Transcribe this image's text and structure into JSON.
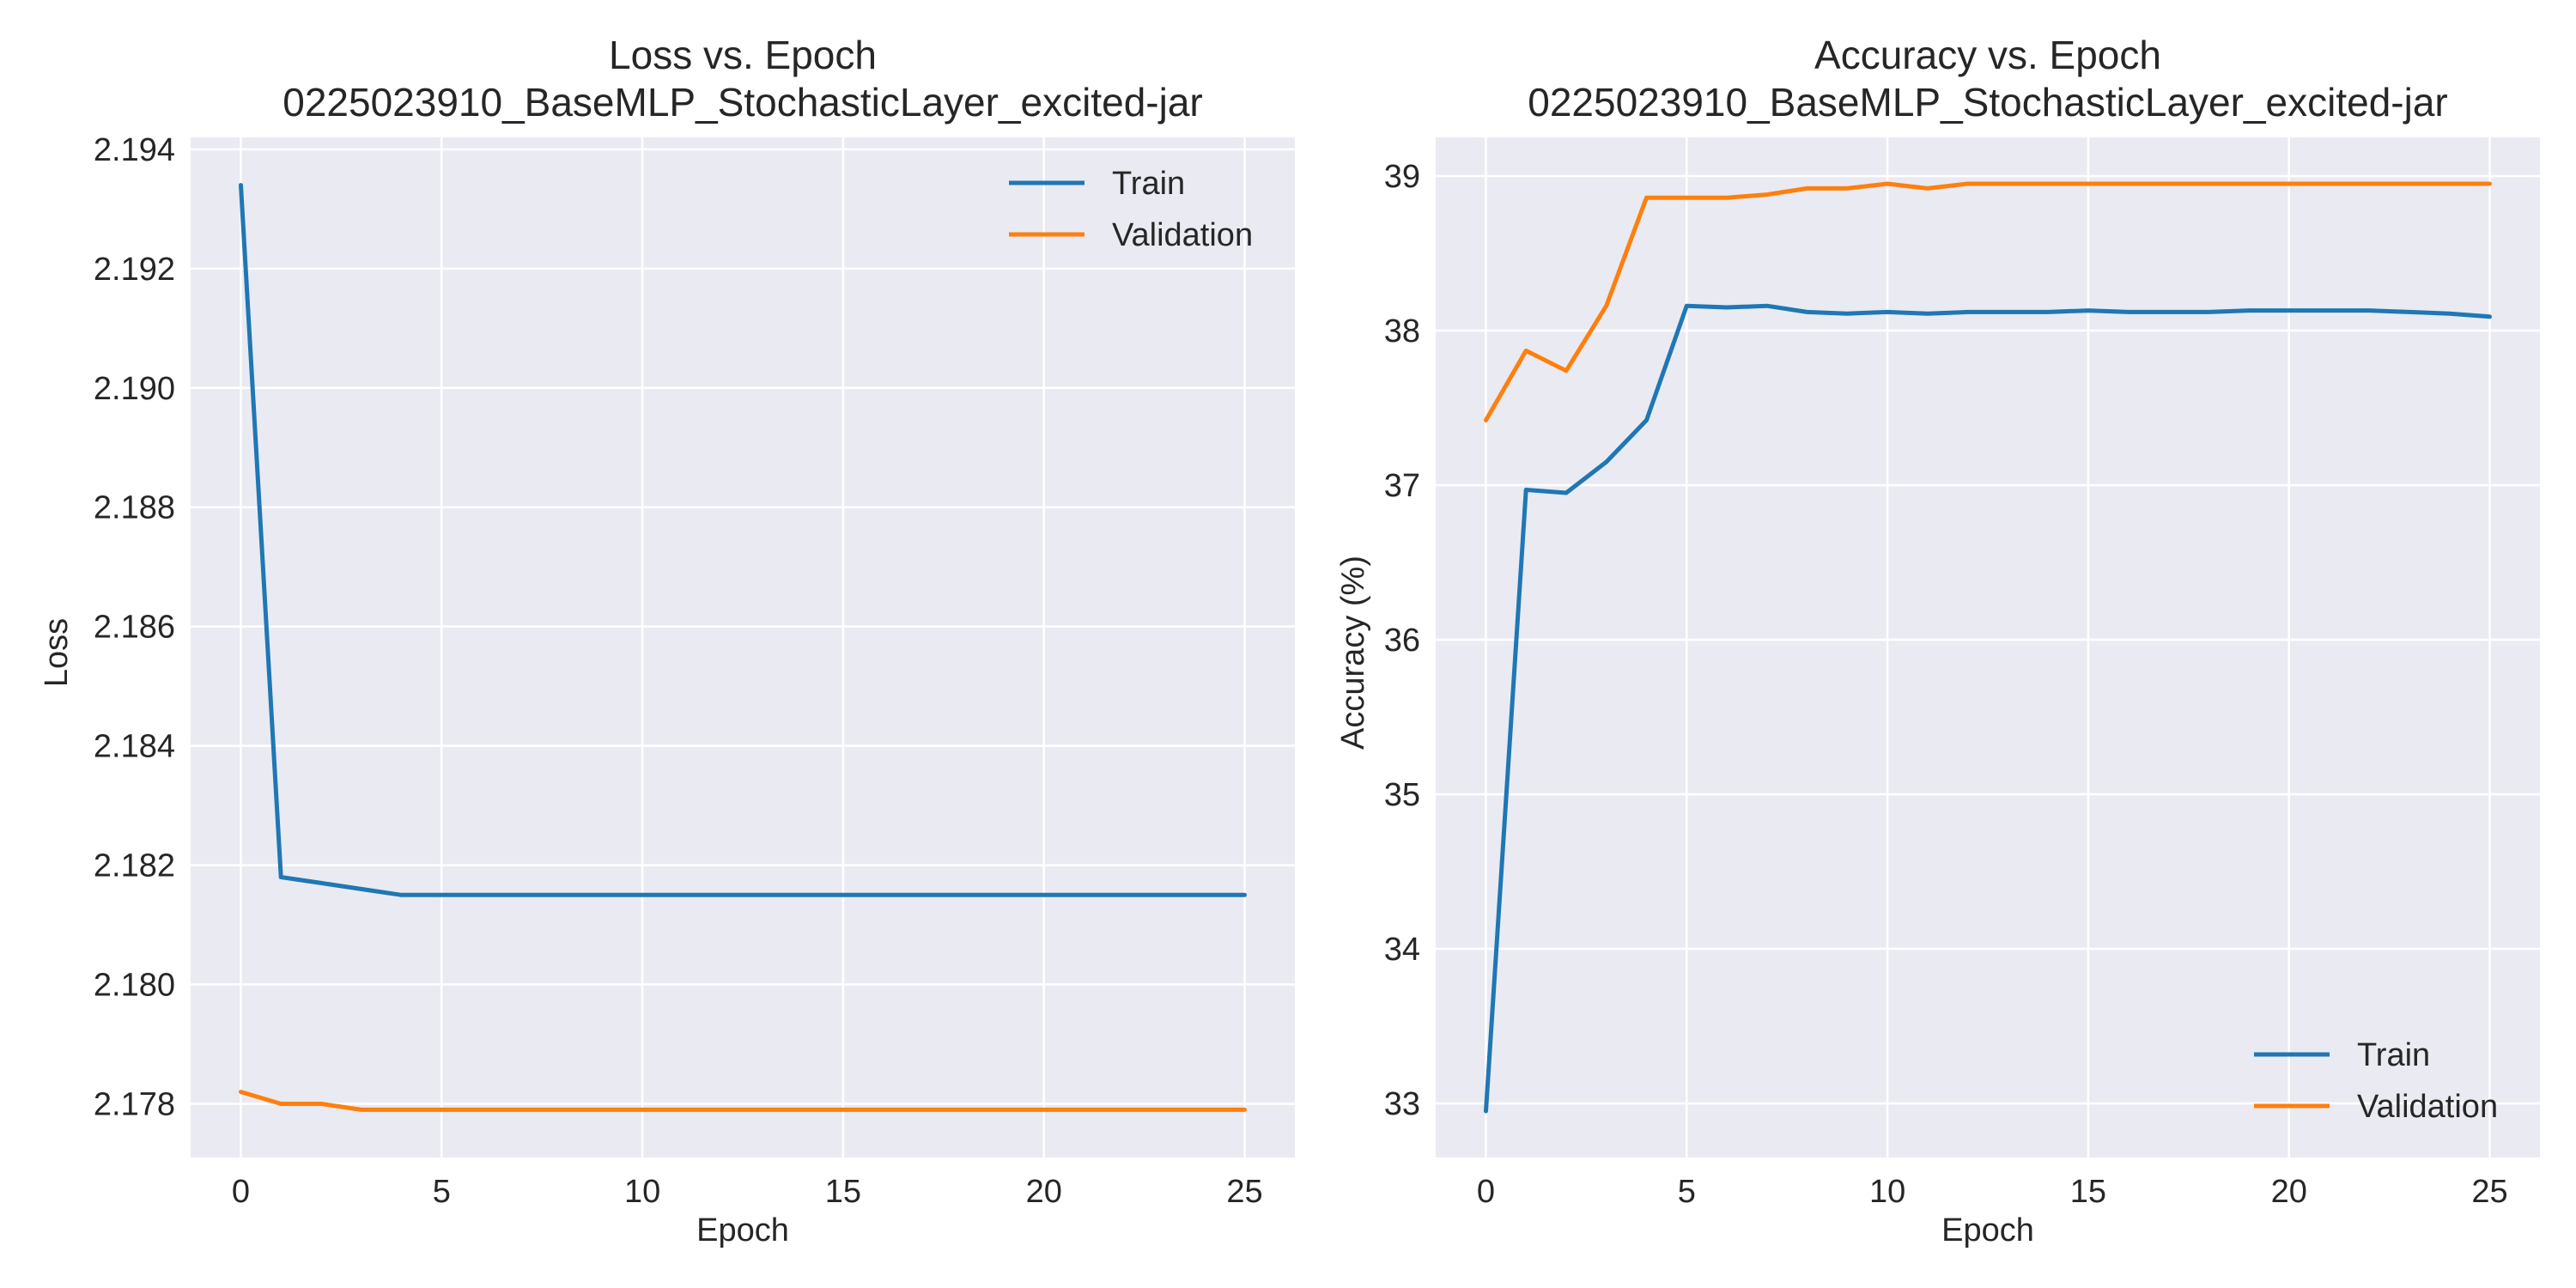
{
  "chart_data": [
    {
      "type": "line",
      "title": "Loss vs. Epoch",
      "subtitle": "0225023910_BaseMLP_StochasticLayer_excited-jar",
      "xlabel": "Epoch",
      "ylabel": "Loss",
      "xlim": [
        -1.25,
        26.25
      ],
      "ylim": [
        2.1771,
        2.1942
      ],
      "xticks": [
        0,
        5,
        10,
        15,
        20,
        25
      ],
      "yticks": [
        2.178,
        2.18,
        2.182,
        2.184,
        2.186,
        2.188,
        2.19,
        2.192,
        2.194
      ],
      "ytick_decimals": 3,
      "grid": true,
      "legend_position": "upper-right",
      "x": [
        0,
        1,
        2,
        3,
        4,
        5,
        6,
        7,
        8,
        9,
        10,
        11,
        12,
        13,
        14,
        15,
        16,
        17,
        18,
        19,
        20,
        21,
        22,
        23,
        24,
        25
      ],
      "series": [
        {
          "name": "Train",
          "color": "#1f77b4",
          "values": [
            2.1934,
            2.1818,
            2.1817,
            2.1816,
            2.1815,
            2.1815,
            2.1815,
            2.1815,
            2.1815,
            2.1815,
            2.1815,
            2.1815,
            2.1815,
            2.1815,
            2.1815,
            2.1815,
            2.1815,
            2.1815,
            2.1815,
            2.1815,
            2.1815,
            2.1815,
            2.1815,
            2.1815,
            2.1815,
            2.1815
          ]
        },
        {
          "name": "Validation",
          "color": "#ff7f0e",
          "values": [
            2.1782,
            2.178,
            2.178,
            2.1779,
            2.1779,
            2.1779,
            2.1779,
            2.1779,
            2.1779,
            2.1779,
            2.1779,
            2.1779,
            2.1779,
            2.1779,
            2.1779,
            2.1779,
            2.1779,
            2.1779,
            2.1779,
            2.1779,
            2.1779,
            2.1779,
            2.1779,
            2.1779,
            2.1779,
            2.1779
          ]
        }
      ]
    },
    {
      "type": "line",
      "title": "Accuracy vs. Epoch",
      "subtitle": "0225023910_BaseMLP_StochasticLayer_excited-jar",
      "xlabel": "Epoch",
      "ylabel": "Accuracy (%)",
      "xlim": [
        -1.25,
        26.25
      ],
      "ylim": [
        32.65,
        39.25
      ],
      "xticks": [
        0,
        5,
        10,
        15,
        20,
        25
      ],
      "yticks": [
        33,
        34,
        35,
        36,
        37,
        38,
        39
      ],
      "ytick_decimals": 0,
      "grid": true,
      "legend_position": "lower-right",
      "x": [
        0,
        1,
        2,
        3,
        4,
        5,
        6,
        7,
        8,
        9,
        10,
        11,
        12,
        13,
        14,
        15,
        16,
        17,
        18,
        19,
        20,
        21,
        22,
        23,
        24,
        25
      ],
      "series": [
        {
          "name": "Train",
          "color": "#1f77b4",
          "values": [
            32.95,
            36.97,
            36.95,
            37.15,
            37.42,
            38.16,
            38.15,
            38.16,
            38.12,
            38.11,
            38.12,
            38.11,
            38.12,
            38.12,
            38.12,
            38.13,
            38.12,
            38.12,
            38.12,
            38.13,
            38.13,
            38.13,
            38.13,
            38.12,
            38.11,
            38.09
          ]
        },
        {
          "name": "Validation",
          "color": "#ff7f0e",
          "values": [
            37.42,
            37.87,
            37.74,
            38.16,
            38.86,
            38.86,
            38.86,
            38.88,
            38.92,
            38.92,
            38.95,
            38.92,
            38.95,
            38.95,
            38.95,
            38.95,
            38.95,
            38.95,
            38.95,
            38.95,
            38.95,
            38.95,
            38.95,
            38.95,
            38.95,
            38.95
          ]
        }
      ]
    }
  ]
}
